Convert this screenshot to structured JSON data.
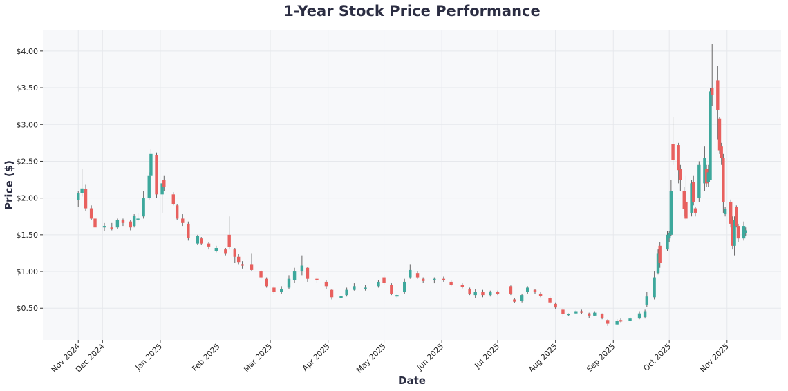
{
  "chart_data": {
    "type": "candlestick",
    "title": "1-Year Stock Price Performance",
    "xlabel": "Date",
    "ylabel": "Price ($)",
    "ylim": [
      0.07,
      4.29
    ],
    "xlim": [
      "2024-10-30",
      "2025-11-30"
    ],
    "grid": true,
    "colors": {
      "up": "#3da89c",
      "down": "#e8605e",
      "wick": "#666666",
      "plot_bg": "#f7f8fa",
      "grid": "#e6e8ec"
    },
    "y_ticks": [
      {
        "value": 0.5,
        "label": "$0.50"
      },
      {
        "value": 1.0,
        "label": "$1.00"
      },
      {
        "value": 1.5,
        "label": "$1.50"
      },
      {
        "value": 2.0,
        "label": "$2.00"
      },
      {
        "value": 2.5,
        "label": "$2.50"
      },
      {
        "value": 3.0,
        "label": "$3.00"
      },
      {
        "value": 3.5,
        "label": "$3.50"
      },
      {
        "value": 4.0,
        "label": "$4.00"
      }
    ],
    "x_ticks": [
      {
        "date": "2024-11-18",
        "label": "Nov 2024"
      },
      {
        "date": "2024-12-01",
        "label": "Dec 2024"
      },
      {
        "date": "2025-01-01",
        "label": "Jan 2025"
      },
      {
        "date": "2025-02-01",
        "label": "Feb 2025"
      },
      {
        "date": "2025-03-01",
        "label": "Mar 2025"
      },
      {
        "date": "2025-04-01",
        "label": "Apr 2025"
      },
      {
        "date": "2025-05-01",
        "label": "May 2025"
      },
      {
        "date": "2025-06-01",
        "label": "Jun 2025"
      },
      {
        "date": "2025-07-01",
        "label": "Jul 2025"
      },
      {
        "date": "2025-08-01",
        "label": "Aug 2025"
      },
      {
        "date": "2025-09-01",
        "label": "Sep 2025"
      },
      {
        "date": "2025-10-01",
        "label": "Oct 2025"
      },
      {
        "date": "2025-11-01",
        "label": "Nov 2025"
      }
    ],
    "candle_fields": [
      "date",
      "open",
      "high",
      "low",
      "close"
    ],
    "candles": [
      [
        "2024-11-18",
        1.97,
        2.1,
        1.88,
        2.07
      ],
      [
        "2024-11-20",
        2.07,
        2.4,
        2.02,
        2.13
      ],
      [
        "2024-11-22",
        2.12,
        2.18,
        1.82,
        1.86
      ],
      [
        "2024-11-25",
        1.86,
        1.9,
        1.7,
        1.72
      ],
      [
        "2024-11-27",
        1.72,
        1.75,
        1.55,
        1.6
      ],
      [
        "2024-12-02",
        1.6,
        1.66,
        1.55,
        1.62
      ],
      [
        "2024-12-06",
        1.6,
        1.66,
        1.56,
        1.58
      ],
      [
        "2024-12-09",
        1.6,
        1.72,
        1.58,
        1.7
      ],
      [
        "2024-12-12",
        1.7,
        1.72,
        1.62,
        1.66
      ],
      [
        "2024-12-16",
        1.68,
        1.7,
        1.56,
        1.6
      ],
      [
        "2024-12-18",
        1.62,
        1.78,
        1.6,
        1.76
      ],
      [
        "2024-12-20",
        1.72,
        1.8,
        1.68,
        1.72
      ],
      [
        "2024-12-23",
        1.75,
        2.1,
        1.72,
        2.0
      ],
      [
        "2024-12-26",
        2.0,
        2.35,
        1.98,
        2.3
      ],
      [
        "2024-12-27",
        2.3,
        2.67,
        2.25,
        2.6
      ],
      [
        "2024-12-30",
        2.58,
        2.62,
        2.0,
        2.05
      ],
      [
        "2025-01-02",
        2.05,
        2.25,
        1.8,
        2.2
      ],
      [
        "2025-01-03",
        2.25,
        2.3,
        2.1,
        2.15
      ],
      [
        "2025-01-08",
        2.05,
        2.08,
        1.9,
        1.92
      ],
      [
        "2025-01-10",
        1.9,
        1.92,
        1.7,
        1.72
      ],
      [
        "2025-01-13",
        1.72,
        1.78,
        1.62,
        1.66
      ],
      [
        "2025-01-16",
        1.65,
        1.68,
        1.42,
        1.46
      ],
      [
        "2025-01-21",
        1.38,
        1.5,
        1.36,
        1.48
      ],
      [
        "2025-01-23",
        1.45,
        1.47,
        1.36,
        1.38
      ],
      [
        "2025-01-27",
        1.38,
        1.4,
        1.3,
        1.34
      ],
      [
        "2025-01-31",
        1.28,
        1.35,
        1.26,
        1.32
      ],
      [
        "2025-02-05",
        1.3,
        1.32,
        1.22,
        1.25
      ],
      [
        "2025-02-07",
        1.5,
        1.75,
        1.3,
        1.33
      ],
      [
        "2025-02-10",
        1.3,
        1.32,
        1.12,
        1.2
      ],
      [
        "2025-02-12",
        1.2,
        1.24,
        1.1,
        1.13
      ],
      [
        "2025-02-14",
        1.1,
        1.14,
        1.04,
        1.08
      ],
      [
        "2025-02-19",
        1.1,
        1.25,
        1.0,
        1.02
      ],
      [
        "2025-02-24",
        1.0,
        1.02,
        0.9,
        0.92
      ],
      [
        "2025-02-27",
        0.9,
        0.92,
        0.78,
        0.8
      ],
      [
        "2025-03-03",
        0.78,
        0.8,
        0.7,
        0.72
      ],
      [
        "2025-03-07",
        0.72,
        0.8,
        0.7,
        0.76
      ],
      [
        "2025-03-11",
        0.78,
        0.95,
        0.76,
        0.9
      ],
      [
        "2025-03-14",
        0.88,
        1.05,
        0.85,
        1.0
      ],
      [
        "2025-03-18",
        1.0,
        1.22,
        0.95,
        1.08
      ],
      [
        "2025-03-21",
        1.05,
        1.06,
        0.86,
        0.9
      ],
      [
        "2025-03-26",
        0.9,
        0.92,
        0.84,
        0.88
      ],
      [
        "2025-03-31",
        0.86,
        0.88,
        0.76,
        0.8
      ],
      [
        "2025-04-03",
        0.75,
        0.76,
        0.62,
        0.65
      ],
      [
        "2025-04-08",
        0.64,
        0.7,
        0.6,
        0.67
      ],
      [
        "2025-04-11",
        0.68,
        0.78,
        0.66,
        0.75
      ],
      [
        "2025-04-15",
        0.75,
        0.84,
        0.74,
        0.8
      ],
      [
        "2025-04-21",
        0.78,
        0.82,
        0.74,
        0.78
      ],
      [
        "2025-04-28",
        0.8,
        0.88,
        0.78,
        0.86
      ],
      [
        "2025-05-01",
        0.92,
        0.95,
        0.82,
        0.85
      ],
      [
        "2025-05-05",
        0.82,
        0.84,
        0.68,
        0.7
      ],
      [
        "2025-05-08",
        0.66,
        0.7,
        0.64,
        0.68
      ],
      [
        "2025-05-12",
        0.72,
        0.9,
        0.7,
        0.86
      ],
      [
        "2025-05-15",
        0.92,
        1.1,
        0.9,
        1.02
      ],
      [
        "2025-05-19",
        0.98,
        1.0,
        0.9,
        0.92
      ],
      [
        "2025-05-22",
        0.9,
        0.92,
        0.85,
        0.87
      ],
      [
        "2025-05-28",
        0.88,
        0.92,
        0.84,
        0.9
      ],
      [
        "2025-06-02",
        0.9,
        0.93,
        0.86,
        0.88
      ],
      [
        "2025-06-06",
        0.86,
        0.88,
        0.8,
        0.82
      ],
      [
        "2025-06-12",
        0.82,
        0.84,
        0.77,
        0.79
      ],
      [
        "2025-06-16",
        0.76,
        0.78,
        0.68,
        0.7
      ],
      [
        "2025-06-19",
        0.68,
        0.76,
        0.64,
        0.72
      ],
      [
        "2025-06-23",
        0.72,
        0.75,
        0.65,
        0.68
      ],
      [
        "2025-06-27",
        0.68,
        0.74,
        0.66,
        0.72
      ],
      [
        "2025-07-01",
        0.72,
        0.74,
        0.68,
        0.7
      ],
      [
        "2025-07-08",
        0.8,
        0.81,
        0.68,
        0.7
      ],
      [
        "2025-07-10",
        0.62,
        0.64,
        0.57,
        0.59
      ],
      [
        "2025-07-14",
        0.6,
        0.7,
        0.58,
        0.68
      ],
      [
        "2025-07-17",
        0.72,
        0.8,
        0.7,
        0.78
      ],
      [
        "2025-07-21",
        0.75,
        0.76,
        0.7,
        0.72
      ],
      [
        "2025-07-24",
        0.7,
        0.72,
        0.65,
        0.67
      ],
      [
        "2025-07-29",
        0.64,
        0.66,
        0.56,
        0.58
      ],
      [
        "2025-08-01",
        0.56,
        0.58,
        0.49,
        0.51
      ],
      [
        "2025-08-05",
        0.48,
        0.5,
        0.38,
        0.42
      ],
      [
        "2025-08-08",
        0.41,
        0.43,
        0.4,
        0.42
      ],
      [
        "2025-08-12",
        0.43,
        0.47,
        0.42,
        0.46
      ],
      [
        "2025-08-15",
        0.46,
        0.48,
        0.42,
        0.44
      ],
      [
        "2025-08-19",
        0.43,
        0.44,
        0.37,
        0.4
      ],
      [
        "2025-08-22",
        0.4,
        0.46,
        0.39,
        0.44
      ],
      [
        "2025-08-26",
        0.42,
        0.43,
        0.35,
        0.37
      ],
      [
        "2025-08-29",
        0.34,
        0.35,
        0.26,
        0.29
      ],
      [
        "2025-09-03",
        0.28,
        0.35,
        0.27,
        0.33
      ],
      [
        "2025-09-05",
        0.34,
        0.36,
        0.31,
        0.32
      ],
      [
        "2025-09-10",
        0.33,
        0.38,
        0.32,
        0.36
      ],
      [
        "2025-09-15",
        0.36,
        0.46,
        0.35,
        0.43
      ],
      [
        "2025-09-18",
        0.38,
        0.48,
        0.36,
        0.46
      ],
      [
        "2025-09-19",
        0.55,
        0.72,
        0.52,
        0.66
      ],
      [
        "2025-09-23",
        0.65,
        1.0,
        0.62,
        0.92
      ],
      [
        "2025-09-25",
        0.98,
        1.3,
        0.96,
        1.25
      ],
      [
        "2025-09-26",
        1.35,
        1.4,
        1.05,
        1.12
      ],
      [
        "2025-09-30",
        1.3,
        1.55,
        1.28,
        1.5
      ],
      [
        "2025-10-01",
        1.45,
        1.55,
        1.4,
        1.52
      ],
      [
        "2025-10-02",
        1.5,
        2.25,
        1.48,
        2.1
      ],
      [
        "2025-10-03",
        2.73,
        3.1,
        2.45,
        2.52
      ],
      [
        "2025-10-06",
        2.72,
        2.75,
        2.2,
        2.38
      ],
      [
        "2025-10-07",
        2.4,
        2.45,
        2.1,
        2.25
      ],
      [
        "2025-10-09",
        2.1,
        2.15,
        1.75,
        1.85
      ],
      [
        "2025-10-10",
        1.95,
        2.3,
        1.7,
        1.72
      ],
      [
        "2025-10-13",
        1.8,
        2.25,
        1.75,
        2.2
      ],
      [
        "2025-10-14",
        2.22,
        2.3,
        1.9,
        1.95
      ],
      [
        "2025-10-15",
        1.86,
        1.88,
        1.75,
        1.8
      ],
      [
        "2025-10-17",
        2.0,
        2.5,
        1.95,
        2.45
      ],
      [
        "2025-10-20",
        2.2,
        2.7,
        2.1,
        2.55
      ],
      [
        "2025-10-21",
        2.4,
        2.45,
        2.15,
        2.2
      ],
      [
        "2025-10-22",
        2.22,
        2.45,
        2.15,
        2.35
      ],
      [
        "2025-10-23",
        2.25,
        3.5,
        2.25,
        3.45
      ],
      [
        "2025-10-24",
        3.5,
        4.1,
        3.25,
        3.4
      ],
      [
        "2025-10-27",
        3.6,
        3.8,
        2.8,
        3.2
      ],
      [
        "2025-10-28",
        3.08,
        3.1,
        2.6,
        2.65
      ],
      [
        "2025-10-29",
        2.7,
        2.75,
        2.45,
        2.55
      ],
      [
        "2025-10-30",
        2.55,
        2.6,
        1.8,
        1.95
      ],
      [
        "2025-10-31",
        1.78,
        1.88,
        1.75,
        1.85
      ],
      [
        "2025-11-03",
        1.95,
        1.98,
        1.6,
        1.65
      ],
      [
        "2025-11-04",
        1.7,
        1.75,
        1.3,
        1.35
      ],
      [
        "2025-11-05",
        1.35,
        1.75,
        1.22,
        1.7
      ],
      [
        "2025-11-06",
        1.88,
        1.9,
        1.6,
        1.62
      ],
      [
        "2025-11-07",
        1.62,
        1.65,
        1.4,
        1.45
      ],
      [
        "2025-11-10",
        1.45,
        1.68,
        1.42,
        1.62
      ],
      [
        "2025-11-11",
        1.52,
        1.6,
        1.48,
        1.56
      ]
    ]
  }
}
